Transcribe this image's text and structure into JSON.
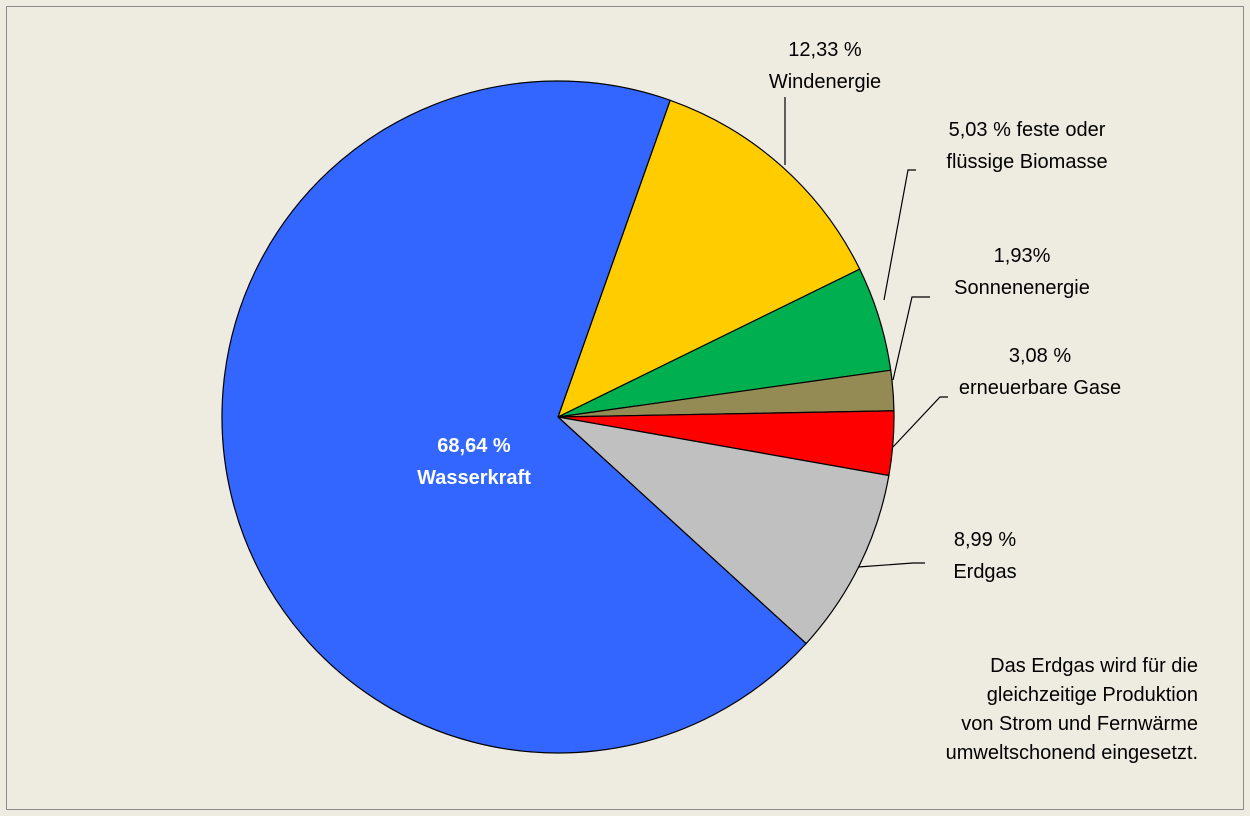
{
  "chart_data": {
    "type": "pie",
    "categories": [
      "Windenergie",
      "feste oder flüssige Biomasse",
      "Sonnenenergie",
      "erneuerbare Gase",
      "Erdgas",
      "Wasserkraft"
    ],
    "values": [
      12.33,
      5.03,
      1.93,
      3.08,
      8.99,
      68.64
    ],
    "value_labels": [
      "12,33 %",
      "5,03 %",
      "1,93%",
      "3,08 %",
      "8,99 %",
      "68,64 %"
    ],
    "colors": [
      "#ffcc00",
      "#00b050",
      "#948a54",
      "#ff0000",
      "#c0c0c0",
      "#3366ff"
    ],
    "annotation": [
      "Das Erdgas wird für die",
      "gleichzeitige Produktion",
      "von Strom und Fernwärme",
      "umweltschonend eingesetzt."
    ]
  }
}
